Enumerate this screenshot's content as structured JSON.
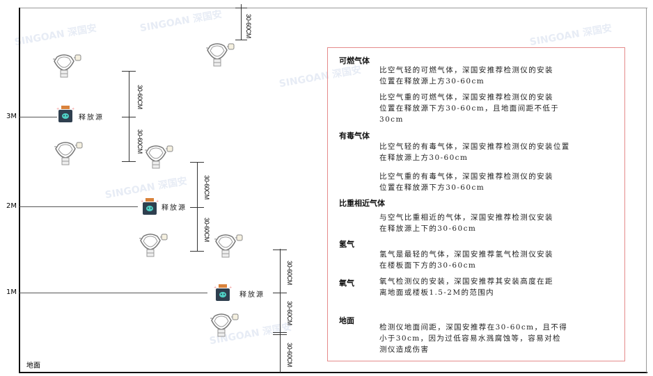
{
  "levels": {
    "m3": "3M",
    "m2": "2M",
    "m1": "1M"
  },
  "ground_label": "地面",
  "source_label": "释放源",
  "dimension_label": "30-60CM",
  "watermark": "SINGOAN 深国安",
  "icons": {
    "detector": "gas-detector-icon",
    "source": "gas-release-source-icon"
  },
  "colors": {
    "box_border": "#e58a8a",
    "source_cap": "#d9823b",
    "source_body": "#2f3f4f",
    "source_face": "#4fd1c5"
  },
  "notes": {
    "combustible": {
      "title": "可燃气体",
      "light": "比空气轻的可燃气体，深国安推荐检测仪的安装\n位置在释放源上方30-60cm",
      "heavy": "比空气重的可燃气体，深国安推荐检测仪的安装\n位置在释放源下方30-60cm，且地面间距不低于\n30cm"
    },
    "toxic": {
      "title": "有毒气体",
      "light": "比空气轻的有毒气体，深国安推荐检测仪的安装位置\n在释放源上方30-60cm",
      "heavy": "比空气重的有毒气体，深国安推荐检测仪的安装\n位置在释放源下方30-60cm"
    },
    "similar": {
      "title": "比重相近气体",
      "text": "与空气比重相近的气体，深国安推荐检测仪安装\n在释放源上下的30-60cm"
    },
    "hydrogen": {
      "title": "氢气",
      "text": "氢气是最轻的气体，深国安推荐氢气检测仪安装\n在楼板面下方的30-60cm"
    },
    "oxygen": {
      "title": "氧气",
      "text": "氧气检测仪的安装，深国安推荐其安装高度在距\n离地面或楼板1.5-2M的范围内"
    },
    "ground": {
      "title": "地面",
      "text": "检测仪地面间距，深国安推荐在30-60cm，且不得\n小于30cm，因为过低容易水溅腐蚀等，容易对检\n测仪造成伤害"
    }
  }
}
